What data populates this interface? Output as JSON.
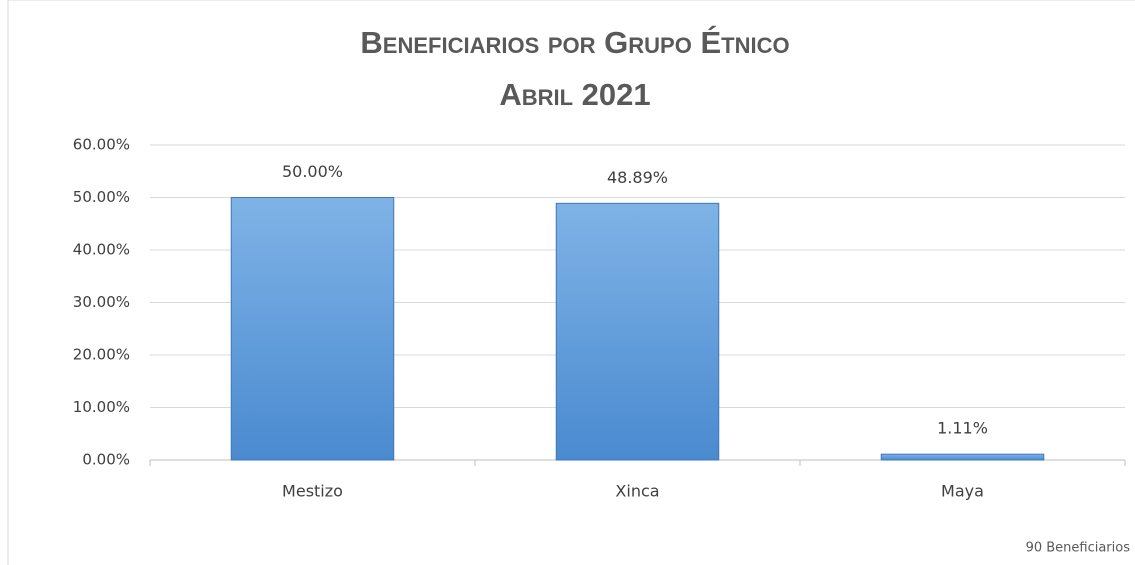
{
  "chart_data": {
    "type": "bar",
    "title": "Beneficiarios por Grupo Étnico",
    "subtitle": "Abril 2021",
    "categories": [
      "Mestizo",
      "Xinca",
      "Maya"
    ],
    "values": [
      50,
      48.89,
      1.11
    ],
    "value_labels": [
      "50.00%",
      "48.89%",
      "1.11%"
    ],
    "color": "#5b9bd5",
    "ylim": [
      0,
      60
    ],
    "yticks": [
      {
        "value": 0,
        "label": "0.00%"
      },
      {
        "value": 10,
        "label": "10.00%"
      },
      {
        "value": 20,
        "label": "20.00%"
      },
      {
        "value": 30,
        "label": "30.00%"
      },
      {
        "value": 40,
        "label": "40.00%"
      },
      {
        "value": 50,
        "label": "50.00%"
      },
      {
        "value": 60,
        "label": "60.00%"
      }
    ],
    "grid": true,
    "annotation": "90 Beneficiarios"
  }
}
